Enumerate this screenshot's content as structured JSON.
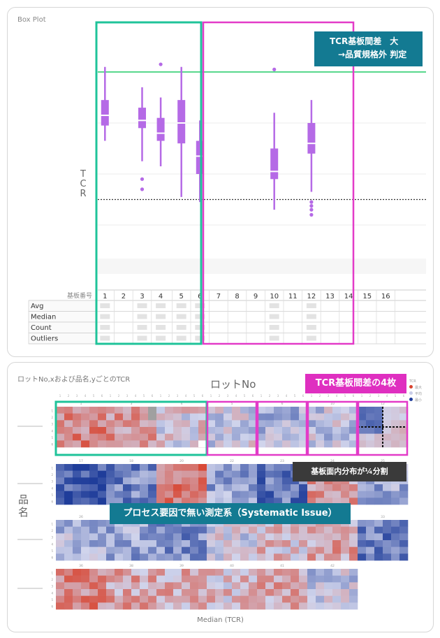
{
  "box_panel": {
    "title": "Box Plot",
    "ylabel": "TCR",
    "callout": {
      "line1": "TCR基板間差　大",
      "line2": "→品質規格外 判定",
      "bg": "#137a92"
    },
    "table": {
      "header_label": "基板番号",
      "columns": [
        "1",
        "2",
        "3",
        "4",
        "5",
        "6",
        "7",
        "8",
        "9",
        "10",
        "11",
        "12",
        "13",
        "14",
        "15",
        "16"
      ],
      "rows": [
        "Avg",
        "Median",
        "Count",
        "Outliers"
      ]
    },
    "highlight_colors": {
      "green": "#1fc39a",
      "magenta": "#e33bc8",
      "limit_line": "#22cc66"
    }
  },
  "heatmap_panel": {
    "title": "ロットNo,xおよび品名,yごとのTCR",
    "xlabel_top": "ロットNo",
    "ylabel": "品名",
    "xlabel_bottom": "Median (TCR)",
    "callout_magenta": "TCR基板間差の4枚",
    "callout_dark": "基板面内分布が¼分割",
    "callout_teal": "プロセス要因で無い測定系（Systematic Issue）",
    "legend": {
      "title": "TCR",
      "items": [
        "最大",
        "平均",
        "最小"
      ],
      "colors": [
        "#d8432f",
        "#c9cde8",
        "#1f3d9a"
      ]
    }
  },
  "chart_data": [
    {
      "type": "box",
      "title": "Box Plot",
      "xlabel": "基板番号",
      "ylabel": "TCR",
      "categories": [
        "1",
        "2",
        "3",
        "4",
        "5",
        "6",
        "7",
        "8",
        "9",
        "10",
        "11",
        "12",
        "13",
        "14",
        "15",
        "16"
      ],
      "ylim": [
        0,
        10
      ],
      "upper_limit": 8.0,
      "lower_limit": 3.0,
      "boxes": [
        {
          "x": "1",
          "whisker_low": 5.3,
          "q1": 5.9,
          "median": 6.3,
          "q3": 6.9,
          "whisker_high": 8.2,
          "outliers": []
        },
        {
          "x": "3",
          "whisker_low": 4.5,
          "q1": 5.8,
          "median": 6.1,
          "q3": 6.6,
          "whisker_high": 7.4,
          "outliers": [
            3.8,
            3.4
          ]
        },
        {
          "x": "4",
          "whisker_low": 4.3,
          "q1": 5.3,
          "median": 5.6,
          "q3": 6.2,
          "whisker_high": 7.0,
          "outliers": [
            8.3
          ]
        },
        {
          "x": "5",
          "whisker_low": 3.1,
          "q1": 5.2,
          "median": 6.0,
          "q3": 6.9,
          "whisker_high": 8.2,
          "outliers": []
        },
        {
          "x": "6",
          "whisker_low": 2.9,
          "q1": 4.0,
          "median": 4.7,
          "q3": 5.3,
          "whisker_high": 6.1,
          "outliers": []
        },
        {
          "x": "10",
          "whisker_low": 2.6,
          "q1": 3.8,
          "median": 4.1,
          "q3": 5.0,
          "whisker_high": 6.4,
          "outliers": [
            8.1
          ]
        },
        {
          "x": "12",
          "whisker_low": 3.3,
          "q1": 4.8,
          "median": 5.2,
          "q3": 6.0,
          "whisker_high": 6.9,
          "outliers": [
            2.9,
            2.75,
            2.6,
            2.4
          ]
        }
      ],
      "highlight_groups": [
        {
          "color": "green",
          "substrates": [
            "1",
            "2",
            "3",
            "4"
          ]
        },
        {
          "color": "magenta",
          "substrates": [
            "5",
            "6",
            "7",
            "8",
            "9",
            "10",
            "11",
            "12"
          ]
        }
      ]
    },
    {
      "type": "heatmap",
      "title": "ロットNo,xおよび品名,yごとのTCR",
      "xlabel": "ロットNo",
      "ylabel": "品名",
      "color_label": "Median (TCR)",
      "tile_rows": [
        {
          "tiles": [
            "1",
            "3",
            "4",
            "5",
            "6",
            "10",
            "12"
          ]
        },
        {
          "tiles": [
            "17",
            "18",
            "20",
            "22",
            "23",
            "24",
            "25"
          ]
        },
        {
          "tiles": [
            "26",
            "27",
            "28",
            "29",
            "30",
            "31",
            "33"
          ]
        },
        {
          "tiles": [
            "36",
            "38",
            "39",
            "40",
            "41",
            "42"
          ]
        }
      ],
      "cell_grid": {
        "x_positions": [
          1,
          2,
          3,
          4,
          5,
          6
        ],
        "y_positions": [
          1,
          2,
          3,
          4,
          5,
          6
        ]
      },
      "value_scale": {
        "min": "最小",
        "mid": "平均",
        "max": "最大"
      }
    }
  ]
}
